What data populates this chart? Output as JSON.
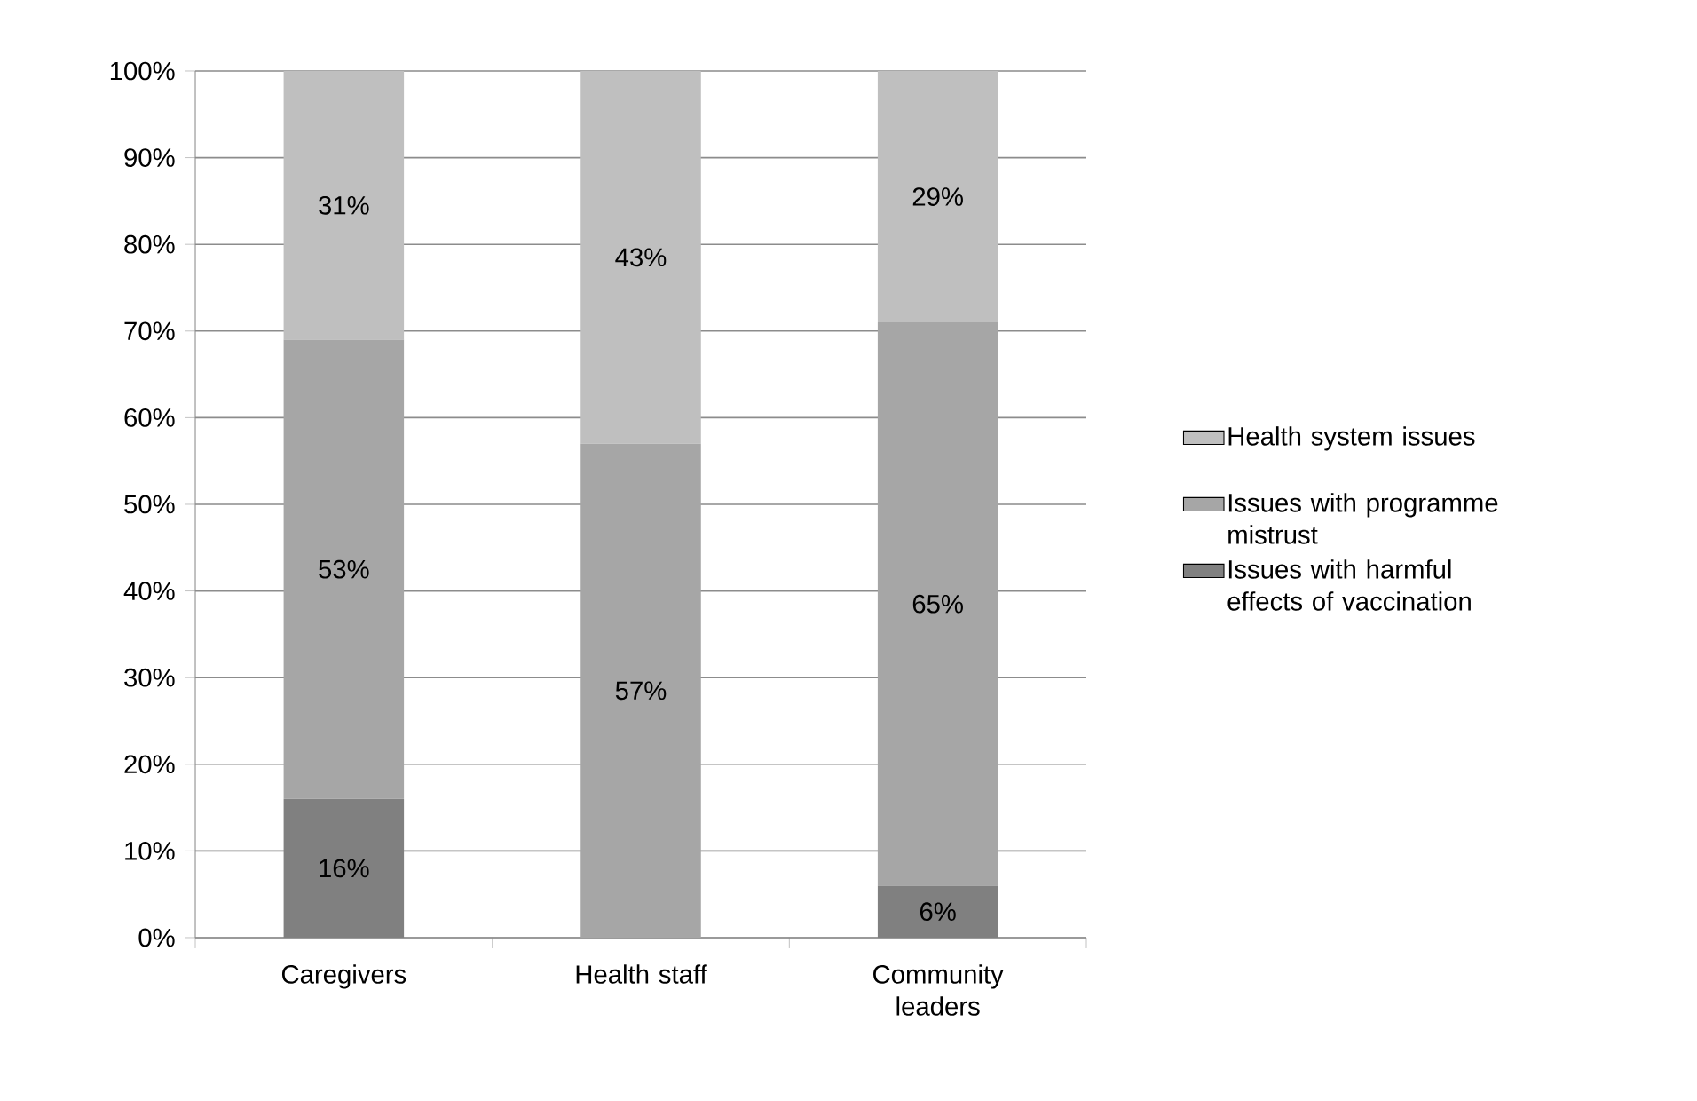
{
  "chart_data": {
    "type": "bar",
    "stacked": true,
    "categories": [
      "Caregivers",
      "Health staff",
      "Community leaders"
    ],
    "series": [
      {
        "name": "Issues with harmful effects of vaccination",
        "color": "#808080",
        "values": [
          16,
          0,
          6
        ],
        "value_labels": [
          "16%",
          null,
          "6%"
        ]
      },
      {
        "name": "Issues with programme mistrust",
        "color": "#a6a6a6",
        "values": [
          53,
          57,
          65
        ],
        "value_labels": [
          "53%",
          "57%",
          "65%"
        ]
      },
      {
        "name": "Health system issues",
        "color": "#bfbfbf",
        "values": [
          31,
          43,
          29
        ],
        "value_labels": [
          "31%",
          "43%",
          "29%"
        ]
      }
    ],
    "ylim": [
      0,
      100
    ],
    "yticks": [
      {
        "value": 0,
        "label": "0%"
      },
      {
        "value": 10,
        "label": "10%"
      },
      {
        "value": 20,
        "label": "20%"
      },
      {
        "value": 30,
        "label": "30%"
      },
      {
        "value": 40,
        "label": "40%"
      },
      {
        "value": 50,
        "label": "50%"
      },
      {
        "value": 60,
        "label": "60%"
      },
      {
        "value": 70,
        "label": "70%"
      },
      {
        "value": 80,
        "label": "80%"
      },
      {
        "value": 90,
        "label": "90%"
      },
      {
        "value": 100,
        "label": "100%"
      }
    ],
    "grid": "y",
    "legend": "right"
  }
}
